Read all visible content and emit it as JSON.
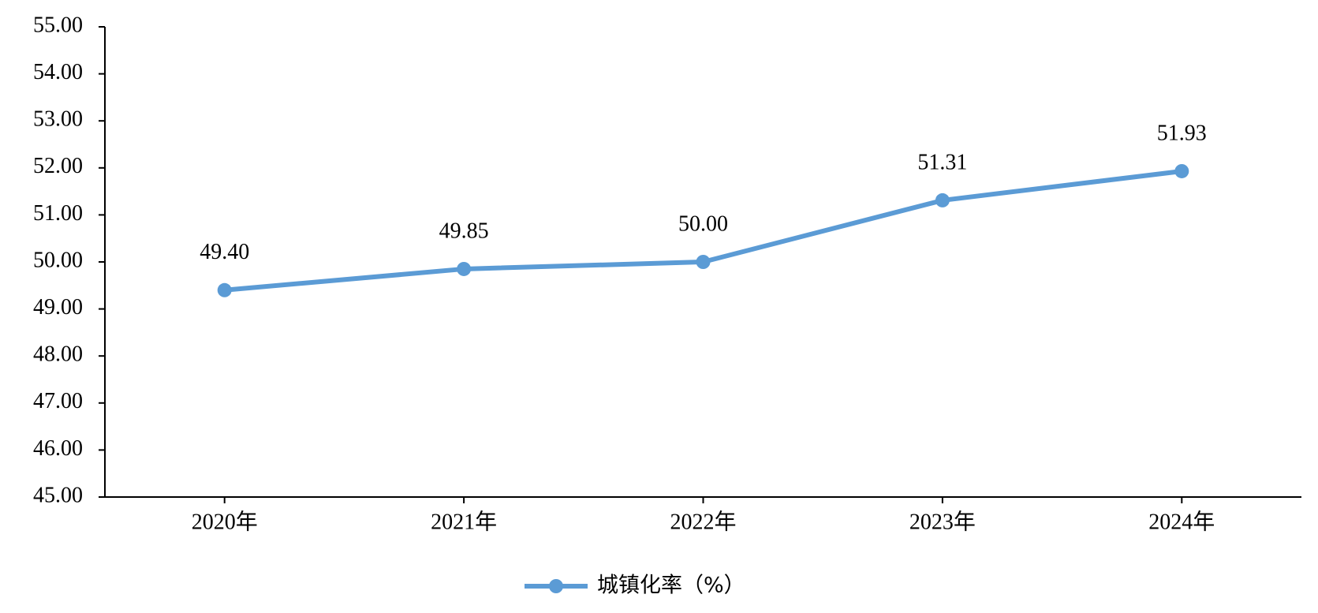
{
  "chart_data": {
    "type": "line",
    "categories": [
      "2020年",
      "2021年",
      "2022年",
      "2023年",
      "2024年"
    ],
    "series": [
      {
        "name": "城镇化率（%）",
        "color": "#5b9bd5",
        "values": [
          49.4,
          49.85,
          50,
          51.31,
          51.93
        ],
        "value_labels": [
          "49.40",
          "49.85",
          "50.00",
          "51.31",
          "51.93"
        ]
      }
    ],
    "ylim": [
      45,
      55
    ],
    "yticks": [
      {
        "value": 45,
        "label": "45.00"
      },
      {
        "value": 46,
        "label": "46.00"
      },
      {
        "value": 47,
        "label": "47.00"
      },
      {
        "value": 48,
        "label": "48.00"
      },
      {
        "value": 49,
        "label": "49.00"
      },
      {
        "value": 50,
        "label": "50.00"
      },
      {
        "value": 51,
        "label": "51.00"
      },
      {
        "value": 52,
        "label": "52.00"
      },
      {
        "value": 53,
        "label": "53.00"
      },
      {
        "value": 54,
        "label": "54.00"
      },
      {
        "value": 55,
        "label": "55.00"
      }
    ],
    "grid": false,
    "legend": "bottom"
  }
}
